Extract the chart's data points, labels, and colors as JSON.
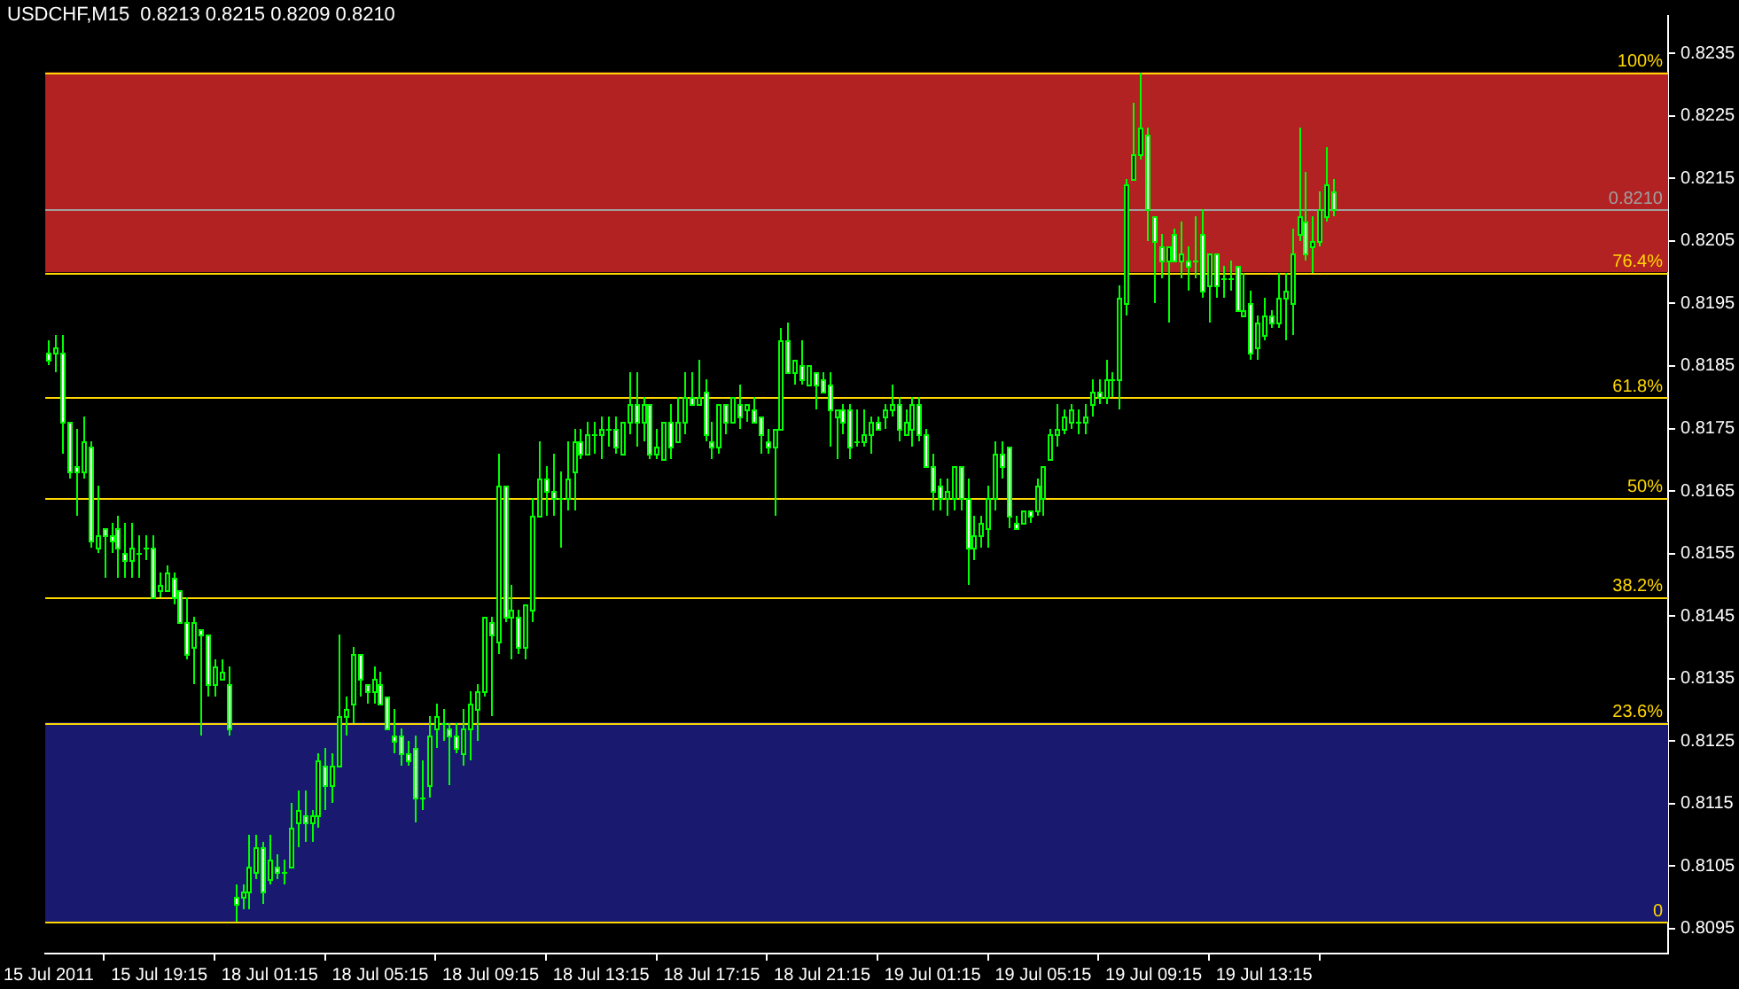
{
  "chart_data": {
    "type": "candlestick",
    "title": "USDCHF,M15  0.8213 0.8215 0.8209 0.8210",
    "color": "#00ff00",
    "categories": [
      "15 Jul 2011",
      null,
      null,
      null,
      null,
      null,
      null,
      null,
      null,
      null,
      null,
      null,
      null,
      null,
      null,
      null,
      "15 Jul 19:15",
      null,
      null,
      null,
      null,
      null,
      null,
      null,
      null,
      null,
      null,
      null,
      null,
      null,
      null,
      null,
      "18 Jul 01:15",
      null,
      null,
      null,
      null,
      null,
      null,
      null,
      null,
      null,
      null,
      null,
      null,
      null,
      null,
      null,
      "18 Jul 05:15",
      null,
      null,
      null,
      null,
      null,
      null,
      null,
      null,
      null,
      null,
      null,
      null,
      null,
      null,
      null,
      "18 Jul 09:15",
      null,
      null,
      null,
      null,
      null,
      null,
      null,
      null,
      null,
      null,
      null,
      null,
      null,
      null,
      null,
      "18 Jul 13:15",
      null,
      null,
      null,
      null,
      null,
      null,
      null,
      null,
      null,
      null,
      null,
      null,
      null,
      null,
      null,
      "18 Jul 17:15",
      null,
      null,
      null,
      null,
      null,
      null,
      null,
      null,
      null,
      null,
      null,
      null,
      null,
      null,
      null,
      "18 Jul 21:15",
      null,
      null,
      null,
      null,
      null,
      null,
      null,
      null,
      null,
      null,
      null,
      null,
      null,
      null,
      null,
      "19 Jul 01:15",
      null,
      null,
      null,
      null,
      null,
      null,
      null,
      null,
      null,
      null,
      null,
      null,
      null,
      null,
      null,
      "19 Jul 05:15",
      null,
      null,
      null,
      null,
      null,
      null,
      null,
      null,
      null,
      null,
      null,
      null,
      null,
      null,
      null,
      "19 Jul 09:15",
      null,
      null,
      null,
      null,
      null,
      null,
      null,
      null,
      null,
      null,
      null,
      null,
      null,
      null,
      null,
      "19 Jul 13:15",
      null,
      null,
      null,
      null,
      null,
      null,
      null,
      null,
      null,
      null,
      null,
      null,
      null,
      null,
      null,
      null,
      null,
      null,
      null,
      null,
      null,
      null,
      null,
      null,
      null,
      null,
      null,
      null,
      null,
      null,
      null,
      null,
      null,
      null,
      null,
      null,
      null,
      null,
      null,
      null,
      null,
      null,
      null,
      null,
      null,
      null,
      null,
      null,
      null,
      null,
      null,
      null,
      null,
      null,
      null,
      null,
      null,
      null
    ],
    "ohlc": [
      [
        0.8187,
        0.8189,
        0.8185,
        0.8186
      ],
      [
        0.8187,
        0.819,
        0.8184,
        0.8188
      ],
      [
        0.8187,
        0.819,
        0.8171,
        0.8176
      ],
      [
        0.8176,
        0.8176,
        0.8167,
        0.8168
      ],
      [
        0.8169,
        0.8175,
        0.8161,
        0.8168
      ],
      [
        0.8168,
        0.8177,
        0.8167,
        0.8173
      ],
      [
        0.8172,
        0.8173,
        0.8156,
        0.8157
      ],
      [
        0.8156,
        0.8166,
        0.8155,
        0.8158
      ],
      [
        0.8159,
        0.8159,
        0.8151,
        0.8158
      ],
      [
        0.8158,
        0.816,
        0.8155,
        0.8157
      ],
      [
        0.8159,
        0.8161,
        0.8151,
        0.8156
      ],
      [
        0.8155,
        0.816,
        0.8151,
        0.8154
      ],
      [
        0.8154,
        0.816,
        0.8151,
        0.8156
      ],
      [
        0.8155,
        0.8158,
        0.8151,
        0.8155
      ],
      [
        0.8156,
        0.8158,
        0.8154,
        0.8156
      ],
      [
        0.8156,
        0.8158,
        0.8148,
        0.8148
      ],
      [
        0.8149,
        0.8152,
        0.8148,
        0.815
      ],
      [
        0.8149,
        0.8153,
        0.8149,
        0.8152
      ],
      [
        0.8151,
        0.8152,
        0.8147,
        0.8148
      ],
      [
        0.8149,
        0.8149,
        0.8144,
        0.8144
      ],
      [
        0.8144,
        0.8148,
        0.8138,
        0.8139
      ],
      [
        0.814,
        0.8145,
        0.8134,
        0.8144
      ],
      [
        0.8143,
        0.8143,
        0.8126,
        0.8142
      ],
      [
        0.8142,
        0.8142,
        0.8132,
        0.8134
      ],
      [
        0.8134,
        0.8138,
        0.8132,
        0.8137
      ],
      [
        0.8135,
        0.8138,
        0.8135,
        0.8136
      ],
      [
        0.8134,
        0.8137,
        0.8126,
        0.8127
      ],
      [
        0.81,
        0.8102,
        0.8096,
        0.8099
      ],
      [
        0.81,
        0.8102,
        0.8098,
        0.8101
      ],
      [
        0.8101,
        0.811,
        0.8098,
        0.8105
      ],
      [
        0.8104,
        0.811,
        0.8103,
        0.8108
      ],
      [
        0.8108,
        0.8109,
        0.8099,
        0.8101
      ],
      [
        0.8103,
        0.811,
        0.8102,
        0.8106
      ],
      [
        0.8105,
        0.8107,
        0.8103,
        0.8104
      ],
      [
        0.8104,
        0.8106,
        0.8102,
        0.8104
      ],
      [
        0.8105,
        0.8115,
        0.8105,
        0.8111
      ],
      [
        0.8112,
        0.8117,
        0.8108,
        0.8114
      ],
      [
        0.8113,
        0.8117,
        0.8109,
        0.8112
      ],
      [
        0.8112,
        0.8114,
        0.8109,
        0.8113
      ],
      [
        0.8113,
        0.8123,
        0.8111,
        0.8122
      ],
      [
        0.8121,
        0.8124,
        0.8114,
        0.8118
      ],
      [
        0.8118,
        0.8123,
        0.8115,
        0.8121
      ],
      [
        0.8121,
        0.8142,
        0.8121,
        0.8129
      ],
      [
        0.8129,
        0.8132,
        0.8126,
        0.813
      ],
      [
        0.8131,
        0.814,
        0.8128,
        0.8139
      ],
      [
        0.8139,
        0.8139,
        0.8132,
        0.8135
      ],
      [
        0.8134,
        0.8134,
        0.8131,
        0.8133
      ],
      [
        0.8133,
        0.8137,
        0.8131,
        0.8135
      ],
      [
        0.8134,
        0.8136,
        0.8131,
        0.8131
      ],
      [
        0.8132,
        0.8132,
        0.8127,
        0.8127
      ],
      [
        0.8126,
        0.813,
        0.8123,
        0.8125
      ],
      [
        0.8126,
        0.8127,
        0.8121,
        0.8123
      ],
      [
        0.8123,
        0.8125,
        0.8121,
        0.8122
      ],
      [
        0.8124,
        0.8126,
        0.8112,
        0.8116
      ],
      [
        0.8116,
        0.8122,
        0.8114,
        0.8116
      ],
      [
        0.8118,
        0.8129,
        0.8116,
        0.8126
      ],
      [
        0.8127,
        0.8131,
        0.8124,
        0.8129
      ],
      [
        0.8128,
        0.813,
        0.8125,
        0.8128
      ],
      [
        0.8127,
        0.8128,
        0.8118,
        0.8126
      ],
      [
        0.8126,
        0.8128,
        0.8123,
        0.8124
      ],
      [
        0.8123,
        0.813,
        0.8121,
        0.8127
      ],
      [
        0.8127,
        0.8133,
        0.8122,
        0.8131
      ],
      [
        0.813,
        0.8134,
        0.8125,
        0.8133
      ],
      [
        0.8133,
        0.8145,
        0.8132,
        0.8145
      ],
      [
        0.8144,
        0.8145,
        0.8129,
        0.8142
      ],
      [
        0.8141,
        0.8171,
        0.8139,
        0.8166
      ],
      [
        0.8166,
        0.8166,
        0.8144,
        0.8145
      ],
      [
        0.8145,
        0.815,
        0.8138,
        0.8146
      ],
      [
        0.8145,
        0.8146,
        0.8139,
        0.814
      ],
      [
        0.814,
        0.8147,
        0.8138,
        0.8147
      ],
      [
        0.8146,
        0.8164,
        0.8144,
        0.8161
      ],
      [
        0.8161,
        0.8173,
        0.8161,
        0.8167
      ],
      [
        0.8167,
        0.8169,
        0.8161,
        0.8165
      ],
      [
        0.8165,
        0.8171,
        0.8161,
        0.8164
      ],
      [
        0.8164,
        0.8168,
        0.8156,
        0.8164
      ],
      [
        0.8164,
        0.8173,
        0.8162,
        0.8167
      ],
      [
        0.8168,
        0.8175,
        0.8162,
        0.8173
      ],
      [
        0.8173,
        0.8175,
        0.817,
        0.8171
      ],
      [
        0.8171,
        0.8176,
        0.8171,
        0.8174
      ],
      [
        0.8174,
        0.8176,
        0.8171,
        0.8174
      ],
      [
        0.8174,
        0.8177,
        0.817,
        0.8175
      ],
      [
        0.8175,
        0.8177,
        0.8172,
        0.8175
      ],
      [
        0.8175,
        0.8177,
        0.8171,
        0.8172
      ],
      [
        0.8171,
        0.8176,
        0.8171,
        0.8176
      ],
      [
        0.8176,
        0.8184,
        0.8174,
        0.8179
      ],
      [
        0.8179,
        0.8184,
        0.8172,
        0.8176
      ],
      [
        0.8176,
        0.818,
        0.8173,
        0.8179
      ],
      [
        0.8179,
        0.8179,
        0.817,
        0.8171
      ],
      [
        0.8171,
        0.8175,
        0.817,
        0.8172
      ],
      [
        0.817,
        0.8176,
        0.817,
        0.8176
      ],
      [
        0.8176,
        0.8179,
        0.817,
        0.8172
      ],
      [
        0.8173,
        0.818,
        0.8173,
        0.8176
      ],
      [
        0.8176,
        0.8184,
        0.8174,
        0.818
      ],
      [
        0.818,
        0.8184,
        0.8179,
        0.8179
      ],
      [
        0.8179,
        0.8186,
        0.8179,
        0.818
      ],
      [
        0.8181,
        0.8183,
        0.8173,
        0.8174
      ],
      [
        0.8173,
        0.8176,
        0.817,
        0.8172
      ],
      [
        0.8172,
        0.8179,
        0.8171,
        0.8179
      ],
      [
        0.8179,
        0.8179,
        0.8174,
        0.8176
      ],
      [
        0.8176,
        0.818,
        0.8176,
        0.818
      ],
      [
        0.8179,
        0.8182,
        0.8175,
        0.8177
      ],
      [
        0.8178,
        0.8179,
        0.8176,
        0.8179
      ],
      [
        0.8178,
        0.818,
        0.8176,
        0.8176
      ],
      [
        0.8177,
        0.8177,
        0.8171,
        0.8174
      ],
      [
        0.8173,
        0.8175,
        0.8171,
        0.8172
      ],
      [
        0.8172,
        0.8175,
        0.8161,
        0.8175
      ],
      [
        0.8175,
        0.8191,
        0.8175,
        0.8189
      ],
      [
        0.8189,
        0.8192,
        0.8184,
        0.8184
      ],
      [
        0.8184,
        0.8186,
        0.8182,
        0.8186
      ],
      [
        0.8185,
        0.8189,
        0.8182,
        0.8183
      ],
      [
        0.8182,
        0.8185,
        0.8182,
        0.8185
      ],
      [
        0.8184,
        0.8184,
        0.8178,
        0.8182
      ],
      [
        0.8183,
        0.8184,
        0.8181,
        0.8181
      ],
      [
        0.8182,
        0.8184,
        0.8172,
        0.8178
      ],
      [
        0.8177,
        0.8178,
        0.817,
        0.8178
      ],
      [
        0.8178,
        0.8179,
        0.8174,
        0.8176
      ],
      [
        0.8178,
        0.8179,
        0.817,
        0.8172
      ],
      [
        0.8173,
        0.8178,
        0.8172,
        0.8173
      ],
      [
        0.8173,
        0.8178,
        0.8172,
        0.8174
      ],
      [
        0.8174,
        0.8177,
        0.8171,
        0.8176
      ],
      [
        0.8176,
        0.8177,
        0.8175,
        0.8175
      ],
      [
        0.8177,
        0.8179,
        0.8175,
        0.8178
      ],
      [
        0.8178,
        0.8182,
        0.8177,
        0.8179
      ],
      [
        0.8179,
        0.818,
        0.8173,
        0.8175
      ],
      [
        0.8174,
        0.8178,
        0.8174,
        0.8176
      ],
      [
        0.8175,
        0.818,
        0.8172,
        0.8179
      ],
      [
        0.8179,
        0.818,
        0.8173,
        0.8174
      ],
      [
        0.8174,
        0.8175,
        0.8169,
        0.8169
      ],
      [
        0.8169,
        0.8171,
        0.8162,
        0.8165
      ],
      [
        0.8166,
        0.8167,
        0.8162,
        0.8164
      ],
      [
        0.8164,
        0.8167,
        0.8161,
        0.8165
      ],
      [
        0.8164,
        0.8169,
        0.8162,
        0.8169
      ],
      [
        0.8169,
        0.8169,
        0.8162,
        0.8164
      ],
      [
        0.8164,
        0.8167,
        0.815,
        0.8156
      ],
      [
        0.8156,
        0.8161,
        0.8154,
        0.8158
      ],
      [
        0.8158,
        0.8161,
        0.8156,
        0.816
      ],
      [
        0.8159,
        0.8166,
        0.8156,
        0.8164
      ],
      [
        0.8164,
        0.8173,
        0.8162,
        0.8171
      ],
      [
        0.8171,
        0.8173,
        0.8167,
        0.8169
      ],
      [
        0.8172,
        0.8172,
        0.8159,
        0.8161
      ],
      [
        0.816,
        0.8161,
        0.8159,
        0.8159
      ],
      [
        0.816,
        0.8162,
        0.816,
        0.8162
      ],
      [
        0.8162,
        0.8162,
        0.816,
        0.8161
      ],
      [
        0.8162,
        0.8167,
        0.8161,
        0.8166
      ],
      [
        0.8164,
        0.8169,
        0.8161,
        0.8169
      ],
      [
        0.817,
        0.8175,
        0.817,
        0.8174
      ],
      [
        0.8174,
        0.8179,
        0.8172,
        0.8175
      ],
      [
        0.8175,
        0.8178,
        0.8174,
        0.8177
      ],
      [
        0.8176,
        0.8179,
        0.8175,
        0.8178
      ],
      [
        0.8176,
        0.8178,
        0.8174,
        0.8176
      ],
      [
        0.8176,
        0.8179,
        0.8174,
        0.8177
      ],
      [
        0.8179,
        0.8183,
        0.8177,
        0.8181
      ],
      [
        0.8181,
        0.8183,
        0.8179,
        0.818
      ],
      [
        0.818,
        0.8186,
        0.8179,
        0.8183
      ],
      [
        0.8183,
        0.8184,
        0.818,
        0.8183
      ],
      [
        0.8183,
        0.8198,
        0.8178,
        0.8196
      ],
      [
        0.8195,
        0.8215,
        0.8193,
        0.8214
      ],
      [
        0.8215,
        0.8227,
        0.8215,
        0.8219
      ],
      [
        0.8219,
        0.8232,
        0.8218,
        0.8223
      ],
      [
        0.8222,
        0.8223,
        0.8205,
        0.821
      ],
      [
        0.8209,
        0.8209,
        0.8195,
        0.8205
      ],
      [
        0.8204,
        0.8206,
        0.8199,
        0.8202
      ],
      [
        0.8202,
        0.8204,
        0.8192,
        0.8204
      ],
      [
        0.8206,
        0.8207,
        0.8202,
        0.8202
      ],
      [
        0.8202,
        0.8208,
        0.8199,
        0.8203
      ],
      [
        0.8202,
        0.8204,
        0.8197,
        0.8201
      ],
      [
        0.8202,
        0.8209,
        0.8199,
        0.8202
      ],
      [
        0.8206,
        0.821,
        0.8196,
        0.8197
      ],
      [
        0.8198,
        0.8203,
        0.8192,
        0.8203
      ],
      [
        0.8203,
        0.8203,
        0.8196,
        0.8198
      ],
      [
        0.8199,
        0.8201,
        0.8196,
        0.8199
      ],
      [
        0.8199,
        0.8202,
        0.8197,
        0.8199
      ],
      [
        0.8201,
        0.8201,
        0.8194,
        0.8194
      ],
      [
        0.8193,
        0.82,
        0.8193,
        0.8194
      ],
      [
        0.8195,
        0.8197,
        0.8186,
        0.8187
      ],
      [
        0.8188,
        0.8193,
        0.8186,
        0.8192
      ],
      [
        0.819,
        0.8196,
        0.8189,
        0.8193
      ],
      [
        0.8193,
        0.8194,
        0.8191,
        0.8192
      ],
      [
        0.8192,
        0.82,
        0.8191,
        0.8196
      ],
      [
        0.8196,
        0.82,
        0.8189,
        0.8197
      ],
      [
        0.8195,
        0.8207,
        0.819,
        0.8203
      ],
      [
        0.8206,
        0.8223,
        0.8205,
        0.8209
      ],
      [
        0.8208,
        0.8216,
        0.8202,
        0.8203
      ],
      [
        0.8204,
        0.8209,
        0.82,
        0.8205
      ],
      [
        0.8205,
        0.8213,
        0.8204,
        0.821
      ],
      [
        0.8209,
        0.822,
        0.8208,
        0.8214
      ],
      [
        0.8213,
        0.8215,
        0.8209,
        0.821
      ],
      null,
      null,
      null,
      null,
      null,
      null,
      null,
      null,
      null,
      null,
      null,
      null,
      null,
      null,
      null,
      null,
      null,
      null,
      null,
      null,
      null,
      null,
      null,
      null,
      null,
      null,
      null,
      null,
      null,
      null,
      null,
      null,
      null,
      null,
      null,
      null,
      null,
      null,
      null,
      null,
      null,
      null,
      null,
      null,
      null,
      null,
      null,
      null
    ],
    "ylim": [
      0.8091,
      0.8241
    ],
    "yticks": [
      0.8095,
      0.8105,
      0.8115,
      0.8125,
      0.8135,
      0.8145,
      0.8155,
      0.8165,
      0.8175,
      0.8185,
      0.8195,
      0.8205,
      0.8215,
      0.8225,
      0.8235
    ],
    "bands": [
      {
        "axis": "y",
        "from": 0.82,
        "to": 0.8232,
        "color": "#b22222"
      },
      {
        "axis": "y",
        "from": 0.8096,
        "to": 0.8128,
        "color": "#191970"
      }
    ],
    "ref_lines": [
      {
        "axis": "y",
        "value": 0.8232,
        "color": "#ffd700"
      },
      {
        "axis": "y",
        "value": 0.82,
        "color": "#ffd700"
      },
      {
        "axis": "y",
        "value": 0.818,
        "color": "#ffd700"
      },
      {
        "axis": "y",
        "value": 0.8164,
        "color": "#ffd700"
      },
      {
        "axis": "y",
        "value": 0.8148,
        "color": "#ffd700"
      },
      {
        "axis": "y",
        "value": 0.8128,
        "color": "#ffd700"
      },
      {
        "axis": "y",
        "value": 0.8096,
        "color": "#ffd700"
      },
      {
        "axis": "y",
        "value": 0.821,
        "label": "0.8210",
        "color": "#a0a0a0"
      }
    ],
    "annotations": [
      {
        "text": "100%",
        "y": 0.8232
      },
      {
        "text": "76.4%",
        "y": 0.82
      },
      {
        "text": "61.8%",
        "y": 0.818
      },
      {
        "text": "50%",
        "y": 0.8164
      },
      {
        "text": "38.2%",
        "y": 0.8148
      },
      {
        "text": "23.6%",
        "y": 0.8128
      },
      {
        "text": "0",
        "y": 0.8096
      }
    ]
  }
}
